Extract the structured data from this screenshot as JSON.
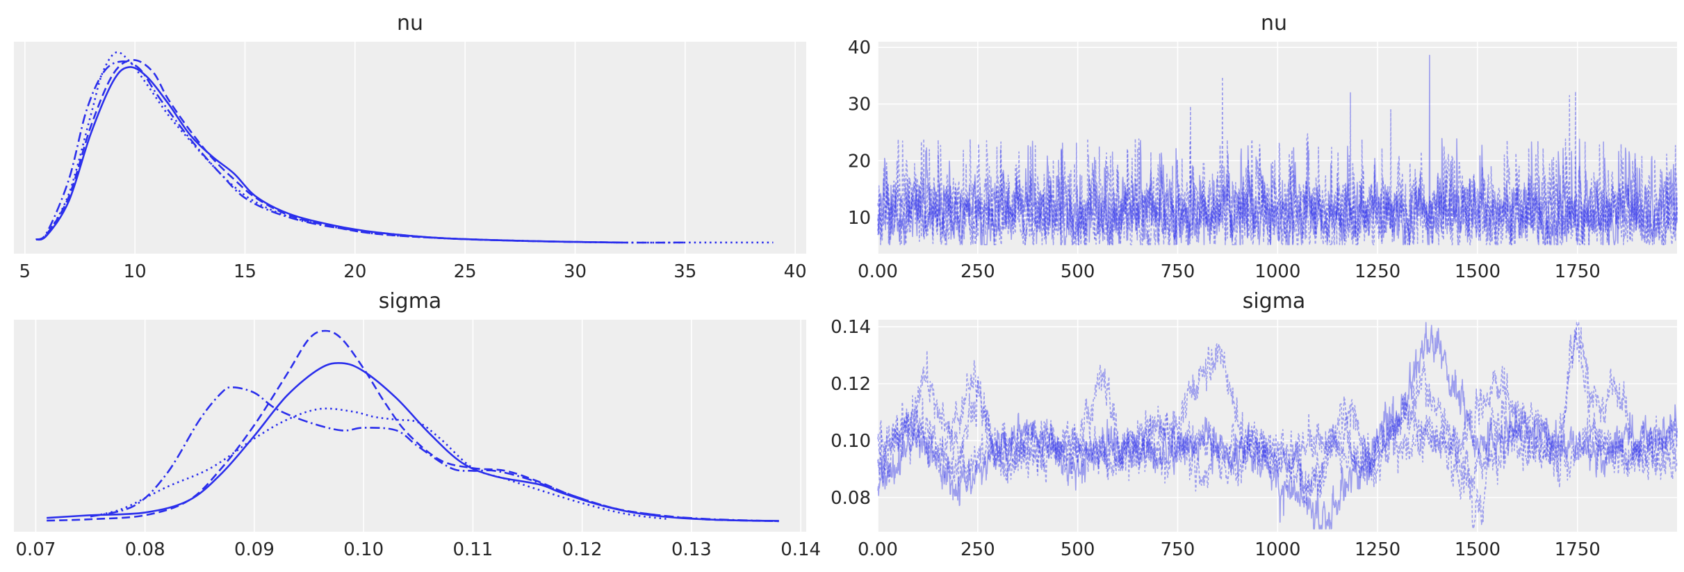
{
  "figure": {
    "background": "#ffffff",
    "axes_background": "#eeeeee",
    "grid_color": "#ffffff",
    "line_color": "#2a2eec"
  },
  "chart_data": [
    {
      "id": "nu-density",
      "type": "line",
      "title": "nu",
      "xlabel": "",
      "ylabel": "",
      "xlim": [
        4.5,
        40.5
      ],
      "xticks": [
        5,
        10,
        15,
        20,
        25,
        30,
        35,
        40
      ],
      "show_yticks": false,
      "grid": true,
      "series": [
        {
          "linestyle": "solid",
          "x": [
            5.5,
            6,
            7,
            8,
            9,
            9.7,
            10.5,
            11.5,
            12.5,
            13.5,
            14.5,
            15.5,
            17,
            19,
            21,
            24,
            28,
            32
          ],
          "y": [
            0.003,
            0.006,
            0.03,
            0.077,
            0.113,
            0.123,
            0.117,
            0.098,
            0.076,
            0.061,
            0.049,
            0.033,
            0.021,
            0.013,
            0.008,
            0.004,
            0.002,
            0.001
          ]
        },
        {
          "linestyle": "dashed",
          "x": [
            5.5,
            6,
            7,
            8,
            9,
            9.9,
            10.8,
            11.5,
            12.5,
            13.5,
            14.5,
            15.5,
            17,
            19,
            21,
            24,
            28,
            32.2
          ],
          "y": [
            0.003,
            0.007,
            0.033,
            0.082,
            0.118,
            0.128,
            0.12,
            0.101,
            0.079,
            0.06,
            0.045,
            0.032,
            0.02,
            0.012,
            0.007,
            0.004,
            0.002,
            0.001
          ]
        },
        {
          "linestyle": "dotted",
          "x": [
            5.5,
            6,
            7,
            8,
            8.5,
            9.1,
            9.7,
            10.5,
            11.5,
            12.5,
            13.5,
            14.5,
            15.5,
            17,
            19,
            21,
            24,
            28,
            32,
            36,
            39
          ],
          "y": [
            0.003,
            0.007,
            0.035,
            0.09,
            0.118,
            0.133,
            0.128,
            0.112,
            0.09,
            0.072,
            0.055,
            0.04,
            0.029,
            0.019,
            0.012,
            0.007,
            0.004,
            0.002,
            0.001,
            0.001,
            0.001
          ]
        },
        {
          "linestyle": "dashdot",
          "x": [
            5.5,
            6,
            7,
            7.8,
            8.6,
            9.4,
            10.2,
            11,
            12,
            13,
            14,
            15,
            16.5,
            18.5,
            21,
            24,
            28,
            32,
            35
          ],
          "y": [
            0.003,
            0.008,
            0.045,
            0.093,
            0.12,
            0.127,
            0.122,
            0.104,
            0.083,
            0.064,
            0.047,
            0.032,
            0.021,
            0.013,
            0.008,
            0.004,
            0.002,
            0.001,
            0.001
          ]
        }
      ]
    },
    {
      "id": "nu-trace",
      "type": "line",
      "title": "nu",
      "xlabel": "",
      "ylabel": "",
      "xlim": [
        0,
        1999
      ],
      "ylim": [
        3.6,
        41
      ],
      "xticks": [
        0,
        250,
        500,
        750,
        1000,
        1250,
        1500,
        1750
      ],
      "yticks": [
        10,
        20,
        30,
        40
      ],
      "grid": true,
      "draws": 2000,
      "chains": 4,
      "typical_range": [
        5,
        20
      ],
      "peak_draws": [
        [
          862,
          34.8
        ],
        [
          1380,
          38.6
        ],
        [
          1745,
          32.2
        ],
        [
          1730,
          31.5
        ],
        [
          1182,
          32
        ],
        [
          1283,
          29
        ],
        [
          782,
          29.6
        ]
      ]
    },
    {
      "id": "sigma-density",
      "type": "line",
      "title": "sigma",
      "xlabel": "",
      "ylabel": "",
      "xlim": [
        0.068,
        0.1405
      ],
      "xticks": [
        0.07,
        0.08,
        0.09,
        0.1,
        0.11,
        0.12,
        0.13,
        0.14
      ],
      "show_yticks": false,
      "grid": true,
      "series": [
        {
          "linestyle": "solid",
          "x": [
            0.071,
            0.075,
            0.08,
            0.084,
            0.087,
            0.09,
            0.093,
            0.096,
            0.098,
            0.1,
            0.103,
            0.106,
            0.109,
            0.112,
            0.116,
            0.118,
            0.121,
            0.124,
            0.127,
            0.13,
            0.134,
            0.138
          ],
          "y": [
            1.5,
            2.5,
            3.5,
            8,
            18,
            32,
            47,
            57,
            59,
            56,
            46,
            33,
            22,
            17,
            14,
            11,
            7,
            4,
            2.2,
            1.2,
            0.6,
            0.4
          ]
        },
        {
          "linestyle": "dashed",
          "x": [
            0.071,
            0.075,
            0.08,
            0.084,
            0.087,
            0.09,
            0.093,
            0.095,
            0.0965,
            0.098,
            0.1,
            0.102,
            0.104,
            0.107,
            0.11,
            0.113,
            0.116,
            0.119,
            0.123,
            0.127,
            0.131,
            0.135,
            0.138
          ],
          "y": [
            0.5,
            1,
            2.5,
            8,
            20,
            36,
            55,
            68,
            71,
            68,
            57,
            44,
            33,
            23,
            20,
            19,
            15,
            10,
            5,
            2.5,
            1,
            0.5,
            0.3
          ]
        },
        {
          "linestyle": "dotted",
          "x": [
            0.075,
            0.078,
            0.082,
            0.086,
            0.09,
            0.093,
            0.096,
            0.099,
            0.101,
            0.103,
            0.105,
            0.107,
            0.11,
            0.113,
            0.116,
            0.12,
            0.124,
            0.128
          ],
          "y": [
            2,
            5,
            13,
            20,
            31,
            38,
            42,
            41,
            39,
            38,
            37,
            31,
            20,
            16,
            12,
            7,
            3,
            1
          ]
        },
        {
          "linestyle": "dashdot",
          "x": [
            0.075,
            0.079,
            0.082,
            0.085,
            0.087,
            0.088,
            0.09,
            0.092,
            0.095,
            0.098,
            0.1,
            0.103,
            0.105,
            0.108,
            0.11,
            0.112,
            0.115,
            0.119,
            0.123,
            0.127,
            0.131,
            0.135,
            0.138
          ],
          "y": [
            2,
            6,
            18,
            38,
            48,
            50,
            48,
            42,
            37,
            34,
            35,
            34,
            28,
            20,
            19,
            19,
            16,
            10,
            5,
            2.5,
            1.2,
            0.6,
            0.3
          ]
        }
      ]
    },
    {
      "id": "sigma-trace",
      "type": "line",
      "title": "sigma",
      "xlabel": "",
      "ylabel": "",
      "xlim": [
        0,
        1999
      ],
      "ylim": [
        0.068,
        0.1425
      ],
      "xticks": [
        0,
        250,
        500,
        750,
        1000,
        1250,
        1500,
        1750
      ],
      "yticks": [
        0.08,
        0.1,
        0.12,
        0.14
      ],
      "grid": true,
      "draws": 2000,
      "chains": 4,
      "chain_anchors": [
        {
          "linestyle": "solid",
          "points": [
            [
              0,
              0.085
            ],
            [
              100,
              0.1
            ],
            [
              200,
              0.083
            ],
            [
              300,
              0.095
            ],
            [
              380,
              0.105
            ],
            [
              500,
              0.09
            ],
            [
              560,
              0.098
            ],
            [
              700,
              0.095
            ],
            [
              800,
              0.1
            ],
            [
              950,
              0.094
            ],
            [
              1050,
              0.08
            ],
            [
              1100,
              0.073
            ],
            [
              1200,
              0.088
            ],
            [
              1300,
              0.11
            ],
            [
              1390,
              0.137
            ],
            [
              1450,
              0.115
            ],
            [
              1500,
              0.1
            ],
            [
              1600,
              0.105
            ],
            [
              1700,
              0.1
            ],
            [
              1800,
              0.096
            ],
            [
              1900,
              0.1
            ],
            [
              1999,
              0.103
            ]
          ]
        },
        {
          "linestyle": "dashed",
          "points": [
            [
              0,
              0.09
            ],
            [
              80,
              0.108
            ],
            [
              150,
              0.095
            ],
            [
              240,
              0.12
            ],
            [
              300,
              0.095
            ],
            [
              400,
              0.1
            ],
            [
              480,
              0.095
            ],
            [
              560,
              0.12
            ],
            [
              620,
              0.095
            ],
            [
              700,
              0.1
            ],
            [
              860,
              0.13
            ],
            [
              920,
              0.1
            ],
            [
              1000,
              0.092
            ],
            [
              1100,
              0.085
            ],
            [
              1170,
              0.11
            ],
            [
              1250,
              0.09
            ],
            [
              1300,
              0.11
            ],
            [
              1400,
              0.1
            ],
            [
              1510,
              0.075
            ],
            [
              1540,
              0.11
            ],
            [
              1600,
              0.1
            ],
            [
              1700,
              0.095
            ],
            [
              1745,
              0.135
            ],
            [
              1800,
              0.1
            ],
            [
              1900,
              0.095
            ],
            [
              1999,
              0.092
            ]
          ]
        },
        {
          "linestyle": "dotted",
          "points": [
            [
              0,
              0.095
            ],
            [
              60,
              0.105
            ],
            [
              120,
              0.12
            ],
            [
              200,
              0.098
            ],
            [
              250,
              0.115
            ],
            [
              320,
              0.09
            ],
            [
              420,
              0.1
            ],
            [
              500,
              0.098
            ],
            [
              600,
              0.092
            ],
            [
              640,
              0.1
            ],
            [
              720,
              0.095
            ],
            [
              800,
              0.1
            ],
            [
              900,
              0.09
            ],
            [
              950,
              0.1
            ],
            [
              1000,
              0.098
            ],
            [
              1080,
              0.085
            ],
            [
              1150,
              0.1
            ],
            [
              1220,
              0.093
            ],
            [
              1300,
              0.105
            ],
            [
              1360,
              0.118
            ],
            [
              1450,
              0.1
            ],
            [
              1550,
              0.12
            ],
            [
              1620,
              0.108
            ],
            [
              1700,
              0.1
            ],
            [
              1750,
              0.138
            ],
            [
              1800,
              0.11
            ],
            [
              1850,
              0.12
            ],
            [
              1900,
              0.098
            ],
            [
              1999,
              0.1
            ]
          ]
        },
        {
          "linestyle": "dashdot",
          "points": [
            [
              0,
              0.1
            ],
            [
              100,
              0.102
            ],
            [
              200,
              0.09
            ],
            [
              300,
              0.1
            ],
            [
              400,
              0.092
            ],
            [
              500,
              0.1
            ],
            [
              600,
              0.095
            ],
            [
              700,
              0.105
            ],
            [
              800,
              0.09
            ],
            [
              900,
              0.1
            ],
            [
              1000,
              0.094
            ],
            [
              1100,
              0.1
            ],
            [
              1200,
              0.092
            ],
            [
              1300,
              0.098
            ],
            [
              1400,
              0.1
            ],
            [
              1500,
              0.09
            ],
            [
              1600,
              0.1
            ],
            [
              1700,
              0.093
            ],
            [
              1800,
              0.1
            ],
            [
              1900,
              0.094
            ],
            [
              1999,
              0.1
            ]
          ]
        }
      ]
    }
  ]
}
